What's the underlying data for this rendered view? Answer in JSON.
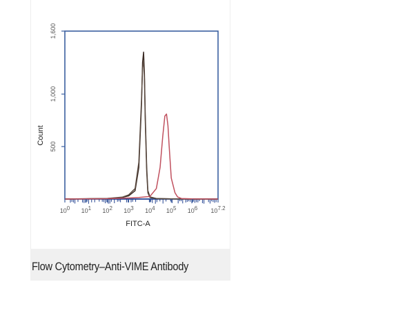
{
  "caption": "Flow Cytometry–Anti-VIME Antibody",
  "chart_data": {
    "type": "line",
    "title": "",
    "xlabel": "FITC-A",
    "ylabel": "Count",
    "x_scale": "log",
    "xlim": [
      1,
      15848932
    ],
    "ylim": [
      0,
      1600
    ],
    "y_ticks": [
      {
        "value": 500,
        "label": "500"
      },
      {
        "value": 1000,
        "label": "1,000"
      },
      {
        "value": 1600,
        "label": "1,600"
      }
    ],
    "x_ticks": [
      {
        "base": "10",
        "exp": "0",
        "value": 1
      },
      {
        "base": "10",
        "exp": "1",
        "value": 10
      },
      {
        "base": "10",
        "exp": "2",
        "value": 100
      },
      {
        "base": "10",
        "exp": "3",
        "value": 1000
      },
      {
        "base": "10",
        "exp": "4",
        "value": 10000
      },
      {
        "base": "10",
        "exp": "5",
        "value": 100000
      },
      {
        "base": "10",
        "exp": "6",
        "value": 1000000
      },
      {
        "base": "10",
        "exp": "7.2",
        "value": 15848932
      }
    ],
    "grid": false,
    "colors": {
      "axis": "#3a5fa0",
      "tick_band": "#1f3f8f",
      "series_1": "#3a2a24",
      "series_2": "#5a4a40",
      "series_3": "#c0505e"
    },
    "series": [
      {
        "color": "#3a2a24",
        "x": [
          1,
          10,
          100,
          500,
          1000,
          2000,
          3000,
          4000,
          4500,
          5000,
          5500,
          6000,
          7000,
          8000,
          10000,
          20000,
          100000,
          1000000,
          15848932
        ],
        "y": [
          0,
          2,
          5,
          15,
          30,
          80,
          300,
          900,
          1300,
          1400,
          1200,
          800,
          300,
          80,
          20,
          5,
          2,
          0,
          0
        ]
      },
      {
        "color": "#5a4a40",
        "x": [
          1,
          10,
          100,
          500,
          1000,
          2000,
          3000,
          4000,
          4500,
          5000,
          5500,
          6000,
          7000,
          8000,
          10000,
          20000,
          100000,
          1000000,
          15848932
        ],
        "y": [
          0,
          3,
          6,
          18,
          40,
          100,
          350,
          950,
          1250,
          1320,
          1150,
          750,
          260,
          60,
          15,
          4,
          1,
          0,
          0
        ]
      },
      {
        "color": "#c0505e",
        "x": [
          1,
          100,
          1000,
          3000,
          10000,
          20000,
          30000,
          40000,
          50000,
          60000,
          70000,
          80000,
          100000,
          150000,
          200000,
          300000,
          1000000,
          15848932
        ],
        "y": [
          0,
          3,
          10,
          15,
          25,
          100,
          300,
          600,
          790,
          810,
          700,
          500,
          200,
          60,
          20,
          5,
          1,
          0
        ]
      }
    ]
  }
}
